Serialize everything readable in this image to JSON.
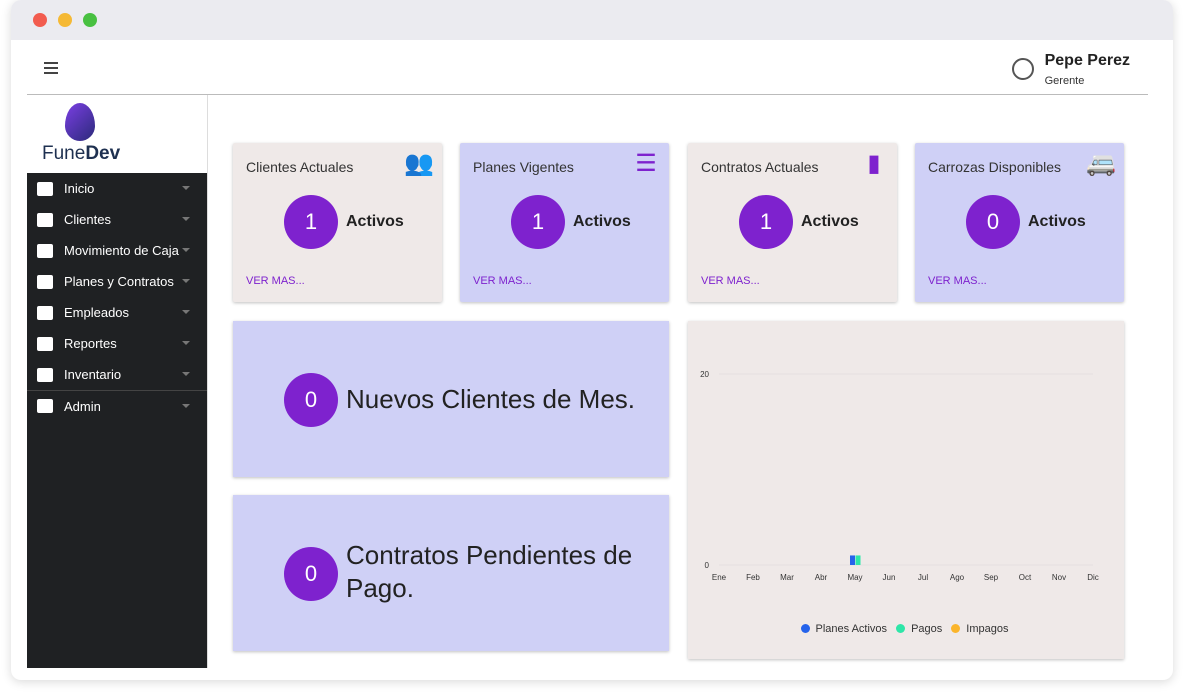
{
  "header": {
    "user_name": "Pepe Perez",
    "user_role": "Gerente"
  },
  "logo": {
    "text_light": "Fune",
    "text_bold": "Dev"
  },
  "sidebar": {
    "items": [
      {
        "label": "Inicio",
        "icon": "home-icon"
      },
      {
        "label": "Clientes",
        "icon": "user-gear-icon"
      },
      {
        "label": "Movimiento de Caja",
        "icon": "money-sync-icon"
      },
      {
        "label": "Planes y Contratos",
        "icon": "files-icon"
      },
      {
        "label": "Empleados",
        "icon": "badge-icon"
      },
      {
        "label": "Reportes",
        "icon": "document-icon"
      },
      {
        "label": "Inventario",
        "icon": "archive-icon"
      },
      {
        "label": "Admin",
        "icon": "shield-user-icon"
      }
    ]
  },
  "cards": [
    {
      "title": "Clientes Actuales",
      "value": "1",
      "status": "Activos",
      "link": "VER MAS...",
      "icon": "users-icon"
    },
    {
      "title": "Planes Vigentes",
      "value": "1",
      "status": "Activos",
      "link": "VER MAS...",
      "icon": "list-icon"
    },
    {
      "title": "Contratos Actuales",
      "value": "1",
      "status": "Activos",
      "link": "VER MAS...",
      "icon": "contact-file-icon"
    },
    {
      "title": "Carrozas Disponibles",
      "value": "0",
      "status": "Activos",
      "link": "VER MAS...",
      "icon": "van-icon"
    }
  ],
  "summary": [
    {
      "value": "0",
      "label": "Nuevos Clientes de Mes."
    },
    {
      "value": "0",
      "label": "Contratos Pendientes de Pago."
    }
  ],
  "colors": {
    "accent": "#7e22ce",
    "card_a": "#efe9e8",
    "card_b": "#cfd0f6"
  },
  "chart_data": {
    "type": "bar",
    "categories": [
      "Ene",
      "Feb",
      "Mar",
      "Abr",
      "May",
      "Jun",
      "Jul",
      "Ago",
      "Sep",
      "Oct",
      "Nov",
      "Dic"
    ],
    "series": [
      {
        "name": "Planes Activos",
        "color": "#2563eb",
        "values": [
          0,
          0,
          0,
          0,
          1,
          0,
          0,
          0,
          0,
          0,
          0,
          0
        ]
      },
      {
        "name": "Pagos",
        "color": "#2ee6a8",
        "values": [
          0,
          0,
          0,
          0,
          1,
          0,
          0,
          0,
          0,
          0,
          0,
          0
        ]
      },
      {
        "name": "Impagos",
        "color": "#fbb52b",
        "values": [
          0,
          0,
          0,
          0,
          0,
          0,
          0,
          0,
          0,
          0,
          0,
          0
        ]
      }
    ],
    "yticks": [
      0,
      20
    ],
    "ylim": [
      0,
      20
    ],
    "legend": "bottom",
    "grid": true
  }
}
